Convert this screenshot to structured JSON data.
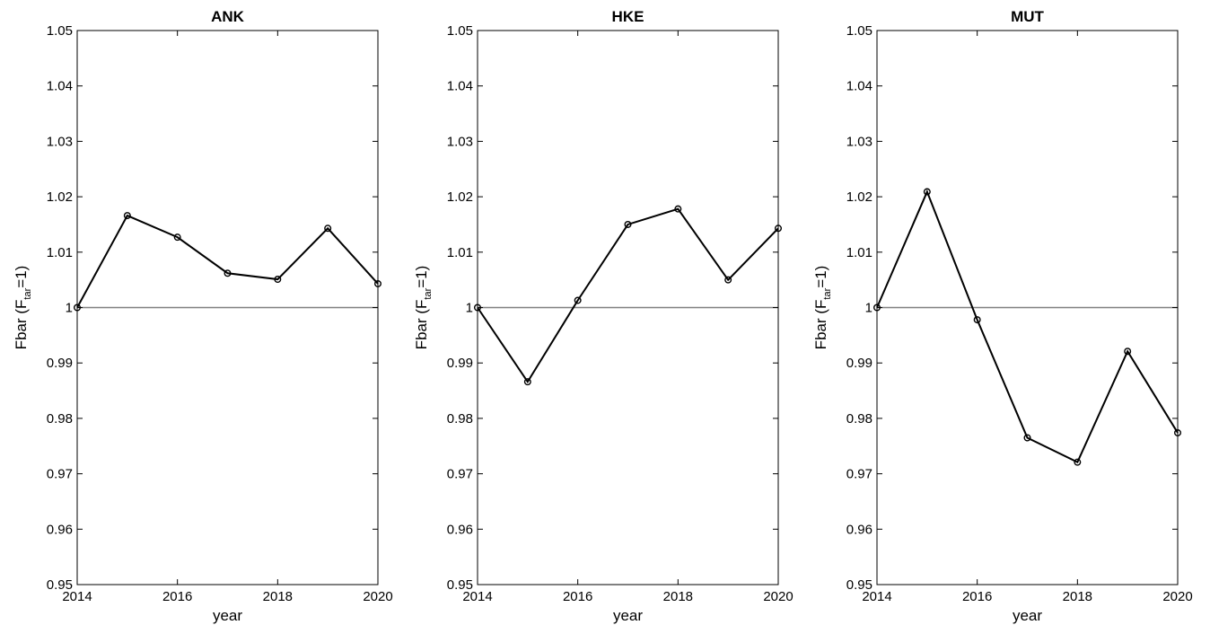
{
  "chart_data": [
    {
      "type": "line",
      "title": "ANK",
      "xlabel": "year",
      "ylabel": {
        "prefix": "Fbar (F",
        "subscript": "tar",
        "suffix": "=1)"
      },
      "xlim": [
        2014,
        2020
      ],
      "ylim": [
        0.95,
        1.05
      ],
      "xticks": [
        "2014",
        "2016",
        "2018",
        "2020"
      ],
      "yticks": [
        "0.95",
        "0.96",
        "0.97",
        "0.98",
        "0.99",
        "1",
        "1.01",
        "1.02",
        "1.03",
        "1.04",
        "1.05"
      ],
      "reference_line": 1,
      "x": [
        2014,
        2015,
        2016,
        2017,
        2018,
        2019,
        2020
      ],
      "y": [
        1.0,
        1.0166,
        1.0127,
        1.0062,
        1.0051,
        1.0143,
        1.0043
      ]
    },
    {
      "type": "line",
      "title": "HKE",
      "xlabel": "year",
      "ylabel": {
        "prefix": "Fbar (F",
        "subscript": "tar",
        "suffix": "=1)"
      },
      "xlim": [
        2014,
        2020
      ],
      "ylim": [
        0.95,
        1.05
      ],
      "xticks": [
        "2014",
        "2016",
        "2018",
        "2020"
      ],
      "yticks": [
        "0.95",
        "0.96",
        "0.97",
        "0.98",
        "0.99",
        "1",
        "1.01",
        "1.02",
        "1.03",
        "1.04",
        "1.05"
      ],
      "reference_line": 1,
      "x": [
        2014,
        2015,
        2016,
        2017,
        2018,
        2019,
        2020
      ],
      "y": [
        1.0,
        0.9866,
        1.0013,
        1.015,
        1.0178,
        1.005,
        1.0143
      ]
    },
    {
      "type": "line",
      "title": "MUT",
      "xlabel": "year",
      "ylabel": {
        "prefix": "Fbar (F",
        "subscript": "tar",
        "suffix": "=1)"
      },
      "xlim": [
        2014,
        2020
      ],
      "ylim": [
        0.95,
        1.05
      ],
      "xticks": [
        "2014",
        "2016",
        "2018",
        "2020"
      ],
      "yticks": [
        "0.95",
        "0.96",
        "0.97",
        "0.98",
        "0.99",
        "1",
        "1.01",
        "1.02",
        "1.03",
        "1.04",
        "1.05"
      ],
      "reference_line": 1,
      "x": [
        2014,
        2015,
        2016,
        2017,
        2018,
        2019,
        2020
      ],
      "y": [
        1.0,
        1.0209,
        0.9978,
        0.9765,
        0.9721,
        0.9921,
        0.9774
      ]
    }
  ],
  "colors": {
    "series": "#000000",
    "reference": "#808080",
    "axes": "#000000"
  }
}
